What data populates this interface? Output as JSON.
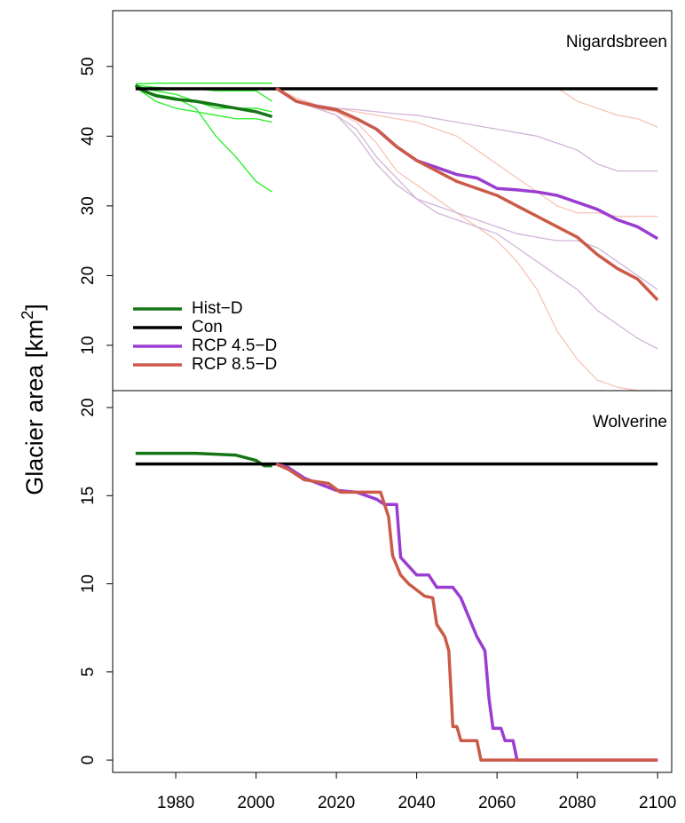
{
  "y_label": {
    "text": "Glacier area [km",
    "superscript": "2",
    "suffix": "]"
  },
  "chart_data": [
    {
      "type": "line",
      "title": "Nigardsbreen",
      "legend": "bottom-left",
      "xlim": [
        1964.3,
        2103.5
      ],
      "ylim": [
        3.5,
        58
      ],
      "yticks": [
        10,
        20,
        30,
        40,
        50
      ],
      "ensemble": [
        {
          "color": "#22ee22",
          "x": [
            1970,
            1975,
            1980,
            1985,
            1990,
            1995,
            2000,
            2004
          ],
          "values": [
            47.5,
            47.6,
            47.6,
            47.6,
            47.6,
            47.6,
            47.6,
            47.6
          ]
        },
        {
          "color": "#22ee22",
          "x": [
            1970,
            1975,
            1980,
            1985,
            1990,
            1995,
            2000,
            2004
          ],
          "values": [
            47,
            45,
            44,
            43.5,
            43,
            42.5,
            42.5,
            42
          ]
        },
        {
          "color": "#22ee22",
          "x": [
            1970,
            1975,
            1980,
            1985,
            1990,
            1995,
            2000,
            2004
          ],
          "values": [
            47,
            46,
            45.5,
            44,
            40,
            37,
            33.5,
            32
          ]
        },
        {
          "color": "#22ee22",
          "x": [
            1970,
            1975,
            1980,
            1985,
            1990,
            1995,
            2000,
            2004
          ],
          "values": [
            47.2,
            46.5,
            46,
            45,
            44,
            44,
            44,
            43.5
          ]
        },
        {
          "color": "#22ee22",
          "x": [
            1970,
            1975,
            1980,
            1985,
            1990,
            1995,
            2000,
            2004
          ],
          "values": [
            47.3,
            47,
            46.8,
            46.8,
            46.5,
            46.5,
            46.5,
            45
          ]
        },
        {
          "color": "#f8c4b6",
          "x": [
            2005,
            2010,
            2015,
            2020,
            2025,
            2030,
            2035,
            2040,
            2045,
            2050,
            2055,
            2060,
            2065,
            2070,
            2075,
            2080,
            2085,
            2090,
            2095,
            2100
          ],
          "values": [
            46.9,
            45.5,
            44.5,
            44,
            43.5,
            43,
            42.5,
            42,
            41,
            40,
            38,
            36,
            34,
            32,
            30,
            29,
            29,
            28.5,
            28.5,
            28.5
          ]
        },
        {
          "color": "#f8c4b6",
          "x": [
            2005,
            2010,
            2015,
            2020,
            2025,
            2030,
            2035,
            2040,
            2045,
            2050,
            2055,
            2060,
            2065,
            2070,
            2075,
            2080,
            2085,
            2090,
            2095,
            2100
          ],
          "values": [
            46.9,
            45,
            44,
            43.5,
            42,
            39,
            35,
            33,
            31,
            29,
            27,
            25,
            22,
            18,
            12,
            8,
            5,
            4,
            3.5,
            3.5
          ]
        },
        {
          "color": "#f8c4b6",
          "x": [
            2005,
            2010,
            2015,
            2020,
            2025,
            2030,
            2035,
            2040,
            2045,
            2050,
            2055,
            2060,
            2065,
            2070,
            2075,
            2080,
            2085,
            2090,
            2095,
            2100
          ],
          "values": [
            46.9,
            46.9,
            46.9,
            46.9,
            46.9,
            46.9,
            46.9,
            46.9,
            46.9,
            46.9,
            46.9,
            46.9,
            46.9,
            46.9,
            46.9,
            45,
            44,
            43,
            42.5,
            41.3
          ]
        },
        {
          "color": "#d2b4d8",
          "x": [
            2005,
            2010,
            2015,
            2020,
            2025,
            2030,
            2035,
            2040,
            2045,
            2050,
            2055,
            2060,
            2065,
            2070,
            2075,
            2080,
            2085,
            2090,
            2095,
            2100
          ],
          "values": [
            46.9,
            45,
            44.5,
            44,
            43.8,
            43.5,
            43.2,
            43,
            42.5,
            42,
            41.5,
            41,
            40.5,
            40,
            39,
            38,
            36,
            35,
            35,
            35
          ]
        },
        {
          "color": "#d2b4d8",
          "x": [
            2005,
            2010,
            2015,
            2020,
            2025,
            2030,
            2035,
            2040,
            2045,
            2050,
            2055,
            2060,
            2065,
            2070,
            2075,
            2080,
            2085,
            2090,
            2095,
            2100
          ],
          "values": [
            46.9,
            45,
            44,
            43,
            41,
            37,
            34,
            31,
            29,
            28,
            27,
            26,
            24,
            22,
            20,
            18,
            15,
            13,
            11,
            9.5
          ]
        },
        {
          "color": "#d2b4d8",
          "x": [
            2005,
            2010,
            2015,
            2020,
            2025,
            2030,
            2035,
            2040,
            2045,
            2050,
            2055,
            2060,
            2065,
            2070,
            2075,
            2080,
            2085,
            2090,
            2095,
            2100
          ],
          "values": [
            46.9,
            45,
            44,
            43,
            40,
            36,
            33,
            31,
            30,
            29,
            28,
            27,
            26,
            25.5,
            25,
            25,
            24,
            22,
            20,
            18
          ]
        }
      ],
      "series": [
        {
          "name": "Hist−D",
          "color": "#167516",
          "x": [
            1970,
            1972,
            1975,
            1980,
            1985,
            1990,
            1995,
            2000,
            2004
          ],
          "values": [
            47.3,
            46.5,
            45.8,
            45.3,
            45.0,
            44.5,
            44.0,
            43.5,
            42.8
          ]
        },
        {
          "name": "Con",
          "color": "#000000",
          "x": [
            1970,
            2100
          ],
          "values": [
            46.8,
            46.8
          ]
        },
        {
          "name": "RCP 4.5−D",
          "color": "#9a3dd0",
          "x": [
            2005,
            2010,
            2015,
            2020,
            2025,
            2030,
            2035,
            2040,
            2045,
            2050,
            2055,
            2060,
            2065,
            2070,
            2075,
            2080,
            2085,
            2090,
            2095,
            2100
          ],
          "values": [
            46.9,
            45,
            44.3,
            43.8,
            42.5,
            41,
            38.5,
            36.5,
            35.5,
            34.5,
            34,
            32.5,
            32.3,
            32,
            31.5,
            30.5,
            29.5,
            28,
            27,
            25.3
          ]
        },
        {
          "name": "RCP 8.5−D",
          "color": "#cc5a48",
          "x": [
            2005,
            2010,
            2015,
            2020,
            2025,
            2030,
            2035,
            2040,
            2045,
            2050,
            2055,
            2060,
            2065,
            2070,
            2075,
            2080,
            2085,
            2090,
            2095,
            2100
          ],
          "values": [
            46.9,
            45,
            44.3,
            43.8,
            42.5,
            41,
            38.5,
            36.5,
            35,
            33.5,
            32.5,
            31.5,
            30,
            28.5,
            27,
            25.5,
            23,
            21,
            19.5,
            16.5
          ]
        }
      ]
    },
    {
      "type": "line",
      "title": "Wolverine",
      "xlim": [
        1964.3,
        2103.5
      ],
      "ylim": [
        -0.7,
        20.96
      ],
      "yticks": [
        0,
        5,
        10,
        15,
        20
      ],
      "xticks": [
        1980,
        2000,
        2020,
        2040,
        2060,
        2080,
        2100
      ],
      "series": [
        {
          "color": "#167516",
          "x": [
            1970,
            1985,
            1995,
            2000,
            2002,
            2004
          ],
          "values": [
            17.4,
            17.4,
            17.3,
            17.0,
            16.7,
            16.7
          ]
        },
        {
          "color": "#000000",
          "x": [
            1970,
            2100
          ],
          "values": [
            16.8,
            16.8
          ]
        },
        {
          "color": "#9a3dd0",
          "x": [
            2005,
            2008,
            2012,
            2020,
            2025,
            2030,
            2032,
            2035,
            2036,
            2040,
            2043,
            2045,
            2049,
            2051,
            2055,
            2057,
            2058,
            2059,
            2061,
            2062,
            2064,
            2065,
            2100
          ],
          "values": [
            16.8,
            16.6,
            16.0,
            15.3,
            15.2,
            14.8,
            14.5,
            14.5,
            11.5,
            10.5,
            10.5,
            9.8,
            9.8,
            9.2,
            7,
            6.2,
            3.5,
            1.8,
            1.8,
            1.1,
            1.1,
            0,
            0
          ]
        },
        {
          "color": "#cc5a48",
          "x": [
            2005,
            2008,
            2012,
            2018,
            2021,
            2031,
            2033,
            2034,
            2036,
            2038,
            2042,
            2044,
            2045,
            2047,
            2048,
            2049,
            2050,
            2051,
            2055,
            2056,
            2100
          ],
          "values": [
            16.8,
            16.5,
            15.9,
            15.7,
            15.2,
            15.2,
            13.8,
            11.6,
            10.5,
            10.0,
            9.3,
            9.2,
            7.7,
            7.0,
            6.2,
            1.9,
            1.9,
            1.1,
            1.1,
            0,
            0
          ]
        }
      ]
    }
  ]
}
